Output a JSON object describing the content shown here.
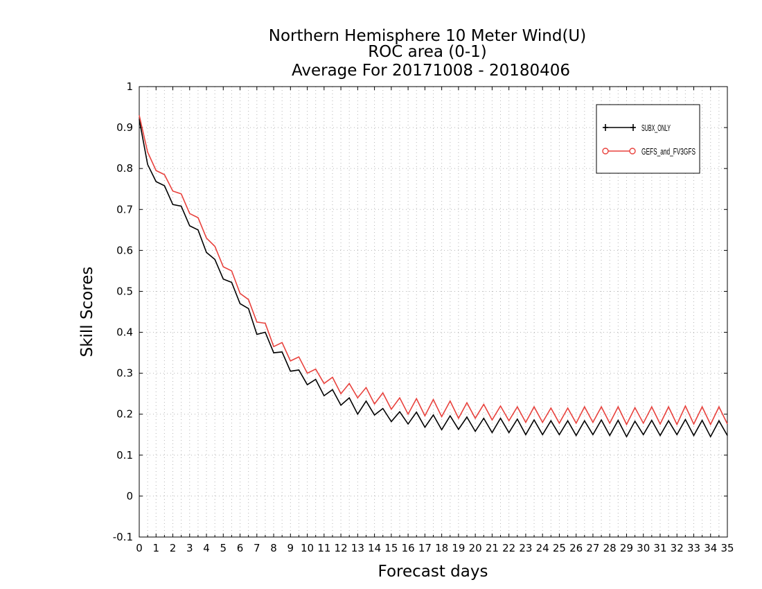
{
  "chart_data": {
    "type": "line",
    "title": [
      "Northern Hemisphere 10 Meter Wind(U)",
      "ROC area (0-1)",
      "Average For 20171008 - 20180406"
    ],
    "xlabel": "Forecast days",
    "ylabel": "Skill Scores",
    "xlim": [
      0,
      35
    ],
    "ylim": [
      -0.1,
      1
    ],
    "xticks": [
      "0",
      "1",
      "2",
      "3",
      "4",
      "5",
      "6",
      "7",
      "8",
      "9",
      "10",
      "11",
      "12",
      "13",
      "14",
      "15",
      "16",
      "17",
      "18",
      "19",
      "20",
      "21",
      "22",
      "23",
      "24",
      "25",
      "26",
      "27",
      "28",
      "29",
      "30",
      "31",
      "32",
      "33",
      "34",
      "35"
    ],
    "yticks": [
      "-0.1",
      "0",
      "0.1",
      "0.2",
      "0.3",
      "0.4",
      "0.5",
      "0.6",
      "0.7",
      "0.8",
      "0.9",
      "1"
    ],
    "grid": true,
    "legend_position": "top-right",
    "x": [
      0,
      0.5,
      1,
      1.5,
      2,
      2.5,
      3,
      3.5,
      4,
      4.5,
      5,
      5.5,
      6,
      6.5,
      7,
      7.5,
      8,
      8.5,
      9,
      9.5,
      10,
      10.5,
      11,
      11.5,
      12,
      12.5,
      13,
      13.5,
      14,
      14.5,
      15,
      15.5,
      16,
      16.5,
      17,
      17.5,
      18,
      18.5,
      19,
      19.5,
      20,
      20.5,
      21,
      21.5,
      22,
      22.5,
      23,
      23.5,
      24,
      24.5,
      25,
      25.5,
      26,
      26.5,
      27,
      27.5,
      28,
      28.5,
      29,
      29.5,
      30,
      30.5,
      31,
      31.5,
      32,
      32.5,
      33,
      33.5,
      34,
      34.5,
      35
    ],
    "series": [
      {
        "name": "SUBX_ONLY",
        "color": "#000000",
        "marker": "plus",
        "values": [
          0.92,
          0.81,
          0.768,
          0.758,
          0.712,
          0.708,
          0.66,
          0.65,
          0.595,
          0.578,
          0.53,
          0.522,
          0.47,
          0.458,
          0.395,
          0.4,
          0.35,
          0.352,
          0.305,
          0.308,
          0.272,
          0.285,
          0.245,
          0.26,
          0.222,
          0.24,
          0.2,
          0.232,
          0.198,
          0.214,
          0.182,
          0.206,
          0.176,
          0.205,
          0.168,
          0.198,
          0.162,
          0.196,
          0.163,
          0.193,
          0.158,
          0.19,
          0.155,
          0.19,
          0.155,
          0.188,
          0.15,
          0.186,
          0.15,
          0.184,
          0.15,
          0.184,
          0.148,
          0.184,
          0.15,
          0.186,
          0.148,
          0.185,
          0.145,
          0.183,
          0.15,
          0.185,
          0.148,
          0.184,
          0.15,
          0.187,
          0.148,
          0.185,
          0.145,
          0.184,
          0.148
        ]
      },
      {
        "name": "GEFS_and_FV3GFS",
        "color": "#e8413c",
        "marker": "circle",
        "values": [
          0.93,
          0.84,
          0.795,
          0.785,
          0.745,
          0.738,
          0.69,
          0.68,
          0.63,
          0.61,
          0.56,
          0.55,
          0.495,
          0.48,
          0.425,
          0.422,
          0.365,
          0.375,
          0.33,
          0.34,
          0.3,
          0.31,
          0.275,
          0.29,
          0.25,
          0.275,
          0.24,
          0.265,
          0.225,
          0.252,
          0.212,
          0.24,
          0.2,
          0.238,
          0.196,
          0.236,
          0.194,
          0.232,
          0.19,
          0.228,
          0.19,
          0.224,
          0.186,
          0.22,
          0.184,
          0.218,
          0.18,
          0.218,
          0.18,
          0.215,
          0.178,
          0.215,
          0.178,
          0.218,
          0.18,
          0.218,
          0.178,
          0.218,
          0.175,
          0.216,
          0.178,
          0.218,
          0.176,
          0.218,
          0.175,
          0.22,
          0.176,
          0.218,
          0.175,
          0.218,
          0.176
        ]
      }
    ]
  }
}
